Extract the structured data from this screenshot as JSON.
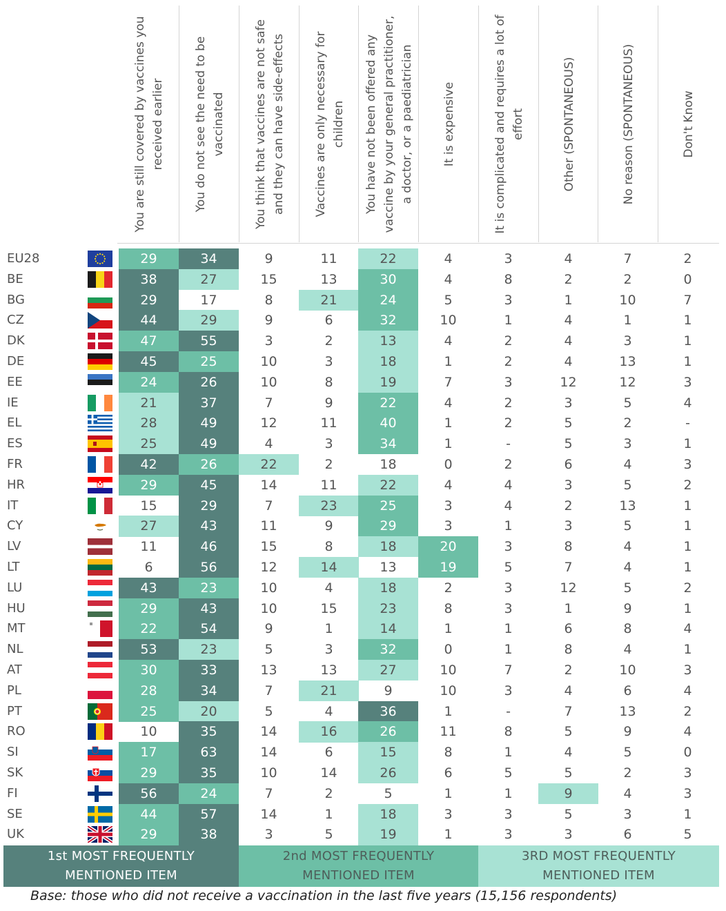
{
  "headers": [
    "You are still covered by vaccines you received earlier",
    "You do not see the need to be vaccinated",
    "You think that vaccines are not safe and they can have side-effects",
    "Vaccines are only necessary for children",
    "You have not been offered any vaccine by your general practitioner, a doctor, or a paediatrician",
    "It is expensive",
    "It is complicated and requires a lot of effort",
    "Other (SPONTANEOUS)",
    "No reason (SPONTANEOUS)",
    "Don't Know"
  ],
  "colors": {
    "rank1": "#56817c",
    "rank2": "#6dbfa6",
    "rank3": "#a8e2d4"
  },
  "rows": [
    {
      "code": "EU28",
      "flag": "eu",
      "values": [
        "29",
        "34",
        "9",
        "11",
        "22",
        "4",
        "3",
        "4",
        "7",
        "2"
      ],
      "ranks": [
        2,
        1,
        0,
        0,
        3,
        0,
        0,
        0,
        0,
        0
      ]
    },
    {
      "code": "BE",
      "flag": "be",
      "values": [
        "38",
        "27",
        "15",
        "13",
        "30",
        "4",
        "8",
        "2",
        "2",
        "0"
      ],
      "ranks": [
        1,
        3,
        0,
        0,
        2,
        0,
        0,
        0,
        0,
        0
      ]
    },
    {
      "code": "BG",
      "flag": "bg",
      "values": [
        "29",
        "17",
        "8",
        "21",
        "24",
        "5",
        "3",
        "1",
        "10",
        "7"
      ],
      "ranks": [
        1,
        0,
        0,
        3,
        2,
        0,
        0,
        0,
        0,
        0
      ]
    },
    {
      "code": "CZ",
      "flag": "cz",
      "values": [
        "44",
        "29",
        "9",
        "6",
        "32",
        "10",
        "1",
        "4",
        "1",
        "1"
      ],
      "ranks": [
        1,
        3,
        0,
        0,
        2,
        0,
        0,
        0,
        0,
        0
      ]
    },
    {
      "code": "DK",
      "flag": "dk",
      "values": [
        "47",
        "55",
        "3",
        "2",
        "13",
        "4",
        "2",
        "4",
        "3",
        "1"
      ],
      "ranks": [
        2,
        1,
        0,
        0,
        3,
        0,
        0,
        0,
        0,
        0
      ]
    },
    {
      "code": "DE",
      "flag": "de",
      "values": [
        "45",
        "25",
        "10",
        "3",
        "18",
        "1",
        "2",
        "4",
        "13",
        "1"
      ],
      "ranks": [
        1,
        2,
        0,
        0,
        3,
        0,
        0,
        0,
        0,
        0
      ]
    },
    {
      "code": "EE",
      "flag": "ee",
      "values": [
        "24",
        "26",
        "10",
        "8",
        "19",
        "7",
        "3",
        "12",
        "12",
        "3"
      ],
      "ranks": [
        2,
        1,
        0,
        0,
        3,
        0,
        0,
        0,
        0,
        0
      ]
    },
    {
      "code": "IE",
      "flag": "ie",
      "values": [
        "21",
        "37",
        "7",
        "9",
        "22",
        "4",
        "2",
        "3",
        "5",
        "4"
      ],
      "ranks": [
        3,
        1,
        0,
        0,
        2,
        0,
        0,
        0,
        0,
        0
      ]
    },
    {
      "code": "EL",
      "flag": "el",
      "values": [
        "28",
        "49",
        "12",
        "11",
        "40",
        "1",
        "2",
        "5",
        "2",
        "-"
      ],
      "ranks": [
        3,
        1,
        0,
        0,
        2,
        0,
        0,
        0,
        0,
        0
      ]
    },
    {
      "code": "ES",
      "flag": "es",
      "values": [
        "25",
        "49",
        "4",
        "3",
        "34",
        "1",
        "-",
        "5",
        "3",
        "1"
      ],
      "ranks": [
        3,
        1,
        0,
        0,
        2,
        0,
        0,
        0,
        0,
        0
      ]
    },
    {
      "code": "FR",
      "flag": "fr",
      "values": [
        "42",
        "26",
        "22",
        "2",
        "18",
        "0",
        "2",
        "6",
        "4",
        "3"
      ],
      "ranks": [
        1,
        2,
        3,
        0,
        0,
        0,
        0,
        0,
        0,
        0
      ]
    },
    {
      "code": "HR",
      "flag": "hr",
      "values": [
        "29",
        "45",
        "14",
        "11",
        "22",
        "4",
        "4",
        "3",
        "5",
        "2"
      ],
      "ranks": [
        2,
        1,
        0,
        0,
        3,
        0,
        0,
        0,
        0,
        0
      ]
    },
    {
      "code": "IT",
      "flag": "it",
      "values": [
        "15",
        "29",
        "7",
        "23",
        "25",
        "3",
        "4",
        "2",
        "13",
        "1"
      ],
      "ranks": [
        0,
        1,
        0,
        3,
        2,
        0,
        0,
        0,
        0,
        0
      ]
    },
    {
      "code": "CY",
      "flag": "cy",
      "values": [
        "27",
        "43",
        "11",
        "9",
        "29",
        "3",
        "1",
        "3",
        "5",
        "1"
      ],
      "ranks": [
        3,
        1,
        0,
        0,
        2,
        0,
        0,
        0,
        0,
        0
      ]
    },
    {
      "code": "LV",
      "flag": "lv",
      "values": [
        "11",
        "46",
        "15",
        "8",
        "18",
        "20",
        "3",
        "8",
        "4",
        "1"
      ],
      "ranks": [
        0,
        1,
        0,
        0,
        3,
        2,
        0,
        0,
        0,
        0
      ]
    },
    {
      "code": "LT",
      "flag": "lt",
      "values": [
        "6",
        "56",
        "12",
        "14",
        "13",
        "19",
        "5",
        "7",
        "4",
        "1"
      ],
      "ranks": [
        0,
        1,
        0,
        3,
        0,
        2,
        0,
        0,
        0,
        0
      ]
    },
    {
      "code": "LU",
      "flag": "lu",
      "values": [
        "43",
        "23",
        "10",
        "4",
        "18",
        "2",
        "3",
        "12",
        "5",
        "2"
      ],
      "ranks": [
        1,
        2,
        0,
        0,
        3,
        0,
        0,
        0,
        0,
        0
      ]
    },
    {
      "code": "HU",
      "flag": "hu",
      "values": [
        "29",
        "43",
        "10",
        "15",
        "23",
        "8",
        "3",
        "1",
        "9",
        "1"
      ],
      "ranks": [
        2,
        1,
        0,
        0,
        3,
        0,
        0,
        0,
        0,
        0
      ]
    },
    {
      "code": "MT",
      "flag": "mt",
      "values": [
        "22",
        "54",
        "9",
        "1",
        "14",
        "1",
        "1",
        "6",
        "8",
        "4"
      ],
      "ranks": [
        2,
        1,
        0,
        0,
        3,
        0,
        0,
        0,
        0,
        0
      ]
    },
    {
      "code": "NL",
      "flag": "nl",
      "values": [
        "53",
        "23",
        "5",
        "3",
        "32",
        "0",
        "1",
        "8",
        "4",
        "1"
      ],
      "ranks": [
        1,
        3,
        0,
        0,
        2,
        0,
        0,
        0,
        0,
        0
      ]
    },
    {
      "code": "AT",
      "flag": "at",
      "values": [
        "30",
        "33",
        "13",
        "13",
        "27",
        "10",
        "7",
        "2",
        "10",
        "3"
      ],
      "ranks": [
        2,
        1,
        0,
        0,
        3,
        0,
        0,
        0,
        0,
        0
      ]
    },
    {
      "code": "PL",
      "flag": "pl",
      "values": [
        "28",
        "34",
        "7",
        "21",
        "9",
        "10",
        "3",
        "4",
        "6",
        "4"
      ],
      "ranks": [
        2,
        1,
        0,
        3,
        0,
        0,
        0,
        0,
        0,
        0
      ]
    },
    {
      "code": "PT",
      "flag": "pt",
      "values": [
        "25",
        "20",
        "5",
        "4",
        "36",
        "1",
        "-",
        "7",
        "13",
        "2"
      ],
      "ranks": [
        2,
        3,
        0,
        0,
        1,
        0,
        0,
        0,
        0,
        0
      ]
    },
    {
      "code": "RO",
      "flag": "ro",
      "values": [
        "10",
        "35",
        "14",
        "16",
        "26",
        "11",
        "8",
        "5",
        "9",
        "4"
      ],
      "ranks": [
        0,
        1,
        0,
        3,
        2,
        0,
        0,
        0,
        0,
        0
      ]
    },
    {
      "code": "SI",
      "flag": "si",
      "values": [
        "17",
        "63",
        "14",
        "6",
        "15",
        "8",
        "1",
        "4",
        "5",
        "0"
      ],
      "ranks": [
        2,
        1,
        0,
        0,
        3,
        0,
        0,
        0,
        0,
        0
      ]
    },
    {
      "code": "SK",
      "flag": "sk",
      "values": [
        "29",
        "35",
        "10",
        "14",
        "26",
        "6",
        "5",
        "5",
        "2",
        "3"
      ],
      "ranks": [
        2,
        1,
        0,
        0,
        3,
        0,
        0,
        0,
        0,
        0
      ]
    },
    {
      "code": "FI",
      "flag": "fi",
      "values": [
        "56",
        "24",
        "7",
        "2",
        "5",
        "1",
        "1",
        "9",
        "4",
        "3"
      ],
      "ranks": [
        1,
        2,
        0,
        0,
        0,
        0,
        0,
        3,
        0,
        0
      ]
    },
    {
      "code": "SE",
      "flag": "se",
      "values": [
        "44",
        "57",
        "14",
        "1",
        "18",
        "3",
        "3",
        "5",
        "3",
        "1"
      ],
      "ranks": [
        2,
        1,
        0,
        0,
        3,
        0,
        0,
        0,
        0,
        0
      ]
    },
    {
      "code": "UK",
      "flag": "uk",
      "values": [
        "29",
        "38",
        "3",
        "5",
        "19",
        "1",
        "3",
        "3",
        "6",
        "5"
      ],
      "ranks": [
        2,
        1,
        0,
        0,
        3,
        0,
        0,
        0,
        0,
        0
      ]
    }
  ],
  "legend": {
    "first_line1": "1st MOST FREQUENTLY",
    "first_line2": "MENTIONED ITEM",
    "second_line1": "2nd MOST FREQUENTLY",
    "second_line2": "MENTIONED ITEM",
    "third_line1": "3RD MOST FREQUENTLY",
    "third_line2": "MENTIONED ITEM"
  },
  "base_note": "Base: those who did not receive a vaccination in the last five years (15,156 respondents)"
}
